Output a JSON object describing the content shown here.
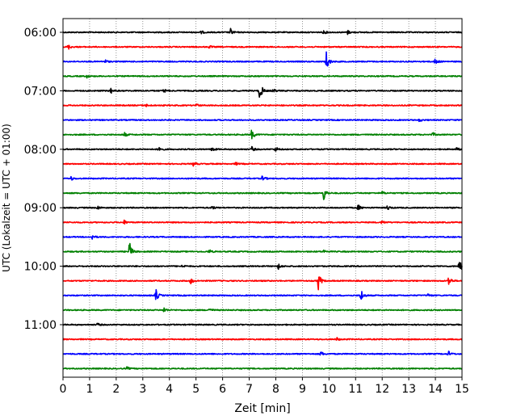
{
  "chart_data": {
    "type": "line",
    "subtype": "helicorder",
    "xlabel": "Zeit  [min]",
    "ylabel": "UTC (Lokalzeit = UTC + 01:00)",
    "xlim": [
      0,
      15
    ],
    "x_ticks": [
      "0",
      "1",
      "2",
      "3",
      "4",
      "5",
      "6",
      "7",
      "8",
      "9",
      "10",
      "11",
      "12",
      "13",
      "14",
      "15"
    ],
    "y_tick_labels": [
      "06:00",
      "07:00",
      "08:00",
      "09:00",
      "10:00",
      "11:00"
    ],
    "y_tick_rows": [
      0,
      4,
      8,
      12,
      16,
      20
    ],
    "grid": "vertical dotted at each minute",
    "trace_interval_minutes": 15,
    "trace_colors": [
      "#000000",
      "#ff0000",
      "#0000ff",
      "#008000"
    ],
    "row_count": 24,
    "events": [
      {
        "row": 0,
        "x": 6.3,
        "amp": 0.7
      },
      {
        "row": 0,
        "x": 9.8,
        "amp": 0.4
      },
      {
        "row": 0,
        "x": 10.7,
        "amp": 0.4
      },
      {
        "row": 0,
        "x": 5.2,
        "amp": 0.3
      },
      {
        "row": 1,
        "x": 0.2,
        "amp": 0.5
      },
      {
        "row": 1,
        "x": 5.5,
        "amp": 0.3
      },
      {
        "row": 2,
        "x": 9.9,
        "amp": 2.2
      },
      {
        "row": 2,
        "x": 14.0,
        "amp": 0.7
      },
      {
        "row": 2,
        "x": 1.6,
        "amp": 0.3
      },
      {
        "row": 3,
        "x": 0.9,
        "amp": 0.3
      },
      {
        "row": 4,
        "x": 7.4,
        "amp": 2.3
      },
      {
        "row": 4,
        "x": 1.8,
        "amp": 0.5
      },
      {
        "row": 4,
        "x": 3.8,
        "amp": 0.4
      },
      {
        "row": 4,
        "x": 7.9,
        "amp": 0.4
      },
      {
        "row": 5,
        "x": 5.0,
        "amp": 0.4
      },
      {
        "row": 5,
        "x": 3.1,
        "amp": 0.3
      },
      {
        "row": 6,
        "x": 13.4,
        "amp": 0.3
      },
      {
        "row": 7,
        "x": 7.1,
        "amp": 1.2
      },
      {
        "row": 7,
        "x": 2.3,
        "amp": 0.5
      },
      {
        "row": 7,
        "x": 13.9,
        "amp": 0.4
      },
      {
        "row": 8,
        "x": 3.6,
        "amp": 0.8
      },
      {
        "row": 8,
        "x": 5.6,
        "amp": 0.6
      },
      {
        "row": 8,
        "x": 7.1,
        "amp": 0.5
      },
      {
        "row": 8,
        "x": 8.0,
        "amp": 0.5
      },
      {
        "row": 8,
        "x": 14.8,
        "amp": 0.3
      },
      {
        "row": 9,
        "x": 4.9,
        "amp": 0.4
      },
      {
        "row": 9,
        "x": 6.5,
        "amp": 0.3
      },
      {
        "row": 10,
        "x": 0.3,
        "amp": 0.4
      },
      {
        "row": 10,
        "x": 7.5,
        "amp": 0.6
      },
      {
        "row": 11,
        "x": 9.8,
        "amp": 1.6
      },
      {
        "row": 11,
        "x": 12.0,
        "amp": 0.3
      },
      {
        "row": 12,
        "x": 11.1,
        "amp": 0.6
      },
      {
        "row": 12,
        "x": 1.3,
        "amp": 0.4
      },
      {
        "row": 12,
        "x": 5.6,
        "amp": 0.4
      },
      {
        "row": 12,
        "x": 12.2,
        "amp": 0.5
      },
      {
        "row": 13,
        "x": 2.3,
        "amp": 0.4
      },
      {
        "row": 13,
        "x": 12.0,
        "amp": 0.4
      },
      {
        "row": 14,
        "x": 1.1,
        "amp": 0.5
      },
      {
        "row": 15,
        "x": 2.5,
        "amp": 2.0
      },
      {
        "row": 15,
        "x": 5.5,
        "amp": 0.4
      },
      {
        "row": 15,
        "x": 9.8,
        "amp": 0.3
      },
      {
        "row": 16,
        "x": 8.1,
        "amp": 0.6
      },
      {
        "row": 16,
        "x": 14.9,
        "amp": 1.6
      },
      {
        "row": 16,
        "x": 4.5,
        "amp": 0.3
      },
      {
        "row": 17,
        "x": 9.6,
        "amp": 2.0
      },
      {
        "row": 17,
        "x": 14.5,
        "amp": 1.1
      },
      {
        "row": 17,
        "x": 4.8,
        "amp": 0.6
      },
      {
        "row": 18,
        "x": 3.5,
        "amp": 1.2
      },
      {
        "row": 18,
        "x": 11.2,
        "amp": 1.4
      },
      {
        "row": 18,
        "x": 13.7,
        "amp": 0.4
      },
      {
        "row": 19,
        "x": 3.8,
        "amp": 0.5
      },
      {
        "row": 19,
        "x": 5.5,
        "amp": 0.4
      },
      {
        "row": 20,
        "x": 1.3,
        "amp": 0.3
      },
      {
        "row": 21,
        "x": 10.3,
        "amp": 0.3
      },
      {
        "row": 22,
        "x": 9.7,
        "amp": 0.5
      },
      {
        "row": 22,
        "x": 14.5,
        "amp": 0.5
      },
      {
        "row": 23,
        "x": 2.4,
        "amp": 0.3
      }
    ]
  }
}
